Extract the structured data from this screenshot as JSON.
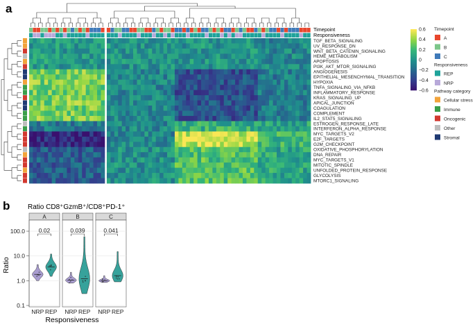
{
  "panel_a": {
    "label": "a",
    "annotation_rows": [
      "Timepoint",
      "Responsiveness"
    ],
    "pathways": [
      {
        "name": "TGF_BETA_SIGNALING",
        "category": "Cellular stress"
      },
      {
        "name": "UV_RESPONSE_DN",
        "category": "Cellular stress"
      },
      {
        "name": "WNT_BETA_CATENIN_SIGNALING",
        "category": "Oncogenic"
      },
      {
        "name": "HEME_METABOLISM",
        "category": "Other"
      },
      {
        "name": "APOPTOSIS",
        "category": "Cellular stress"
      },
      {
        "name": "PI3K_AKT_MTOR_SIGNALING",
        "category": "Oncogenic"
      },
      {
        "name": "ANGIOGENESIS",
        "category": "Stromal"
      },
      {
        "name": "EPITHELIAL_MESENCHYMAL_TRANSITION",
        "category": "Stromal"
      },
      {
        "name": "HYPOXIA",
        "category": "Cellular stress"
      },
      {
        "name": "TNFA_SIGNALING_VIA_NFKB",
        "category": "Immune"
      },
      {
        "name": "INFLAMMATORY_RESPONSE",
        "category": "Immune"
      },
      {
        "name": "KRAS_SIGNALING_UP",
        "category": "Oncogenic"
      },
      {
        "name": "APICAL_JUNCTION",
        "category": "Stromal"
      },
      {
        "name": "COAGULATION",
        "category": "Stromal"
      },
      {
        "name": "COMPLEMENT",
        "category": "Immune"
      },
      {
        "name": "IL2_STAT5_SIGNALING",
        "category": "Immune"
      },
      {
        "name": "ESTROGEN_RESPONSE_LATE",
        "category": "Other"
      },
      {
        "name": "INTERFERON_ALPHA_RESPONSE",
        "category": "Immune"
      },
      {
        "name": "MYC_TARGETS_V2",
        "category": "Oncogenic"
      },
      {
        "name": "E2F_TARGETS",
        "category": "Oncogenic"
      },
      {
        "name": "G2M_CHECKPOINT",
        "category": "Oncogenic"
      },
      {
        "name": "OXIDATIVE_PHOSPHORYLATION",
        "category": "Other"
      },
      {
        "name": "DNA_REPAIR",
        "category": "Cellular stress"
      },
      {
        "name": "MYC_TARGETS_V1",
        "category": "Oncogenic"
      },
      {
        "name": "MITOTIC_SPINDLE",
        "category": "Oncogenic"
      },
      {
        "name": "UNFOLDED_PROTEIN_RESPONSE",
        "category": "Cellular stress"
      },
      {
        "name": "GLYCOLYSIS",
        "category": "Oncogenic"
      },
      {
        "name": "MTORC1_SIGNALING",
        "category": "Oncogenic"
      }
    ]
  },
  "legend": {
    "colorbar_ticks": [
      "0.6",
      "0.4",
      "0.2",
      "0",
      "−0.2",
      "−0.4",
      "−0.6"
    ],
    "groups": [
      {
        "title": "Timepoint",
        "items": [
          {
            "label": "A",
            "color": "#e8472e"
          },
          {
            "label": "B",
            "color": "#7cc68a"
          },
          {
            "label": "C",
            "color": "#3f7ab9"
          }
        ]
      },
      {
        "title": "Responsiveness",
        "items": [
          {
            "label": "REP",
            "color": "#1fa39b"
          },
          {
            "label": "NRP",
            "color": "#b8a9d9"
          }
        ]
      },
      {
        "title": "Pathway category",
        "items": [
          {
            "label": "Cellular stress",
            "color": "#f2a33a"
          },
          {
            "label": "Immune",
            "color": "#3a9e4a"
          },
          {
            "label": "Oncogenic",
            "color": "#d2382f"
          },
          {
            "label": "Other",
            "color": "#bdbdbd"
          },
          {
            "label": "Stromal",
            "color": "#1f3a73"
          }
        ]
      }
    ]
  },
  "chart_data": [
    {
      "type": "heatmap",
      "title": "",
      "value_range": [
        -0.6,
        0.6
      ],
      "n_rows": 28,
      "n_columns": 74,
      "column_split_after": 20
    },
    {
      "type": "violin",
      "title": "Ratio CD8⁺GzmB⁺/CD8⁺PD-1⁺",
      "panel_label": "b",
      "ylabel": "Ratio",
      "xlabel": "Responsiveness",
      "yscale": "log10",
      "ylim": [
        0.1,
        300
      ],
      "yticks": [
        0.1,
        1.0,
        10.0,
        100.0
      ],
      "ytick_labels": [
        "0.1",
        "1.0",
        "10.0",
        "100.0"
      ],
      "x_labels": [
        "NRP",
        "REP"
      ],
      "facets": [
        {
          "label": "A",
          "p_value": "0.02",
          "groups": [
            {
              "name": "NRP",
              "median": 1.8,
              "min": 1.0,
              "max": 4.5
            },
            {
              "name": "REP",
              "median": 3.6,
              "min": 1.5,
              "max": 12.0
            }
          ]
        },
        {
          "label": "B",
          "p_value": "0.039",
          "groups": [
            {
              "name": "NRP",
              "median": 1.05,
              "min": 0.8,
              "max": 2.2
            },
            {
              "name": "REP",
              "median": 1.2,
              "min": 0.3,
              "max": 60.0
            }
          ]
        },
        {
          "label": "C",
          "p_value": "0.041",
          "groups": [
            {
              "name": "NRP",
              "median": 1.0,
              "min": 0.85,
              "max": 1.6
            },
            {
              "name": "REP",
              "median": 1.6,
              "min": 0.9,
              "max": 15.0
            }
          ]
        }
      ],
      "colors": {
        "NRP": "#9a8cc8",
        "REP": "#14928a"
      }
    }
  ]
}
